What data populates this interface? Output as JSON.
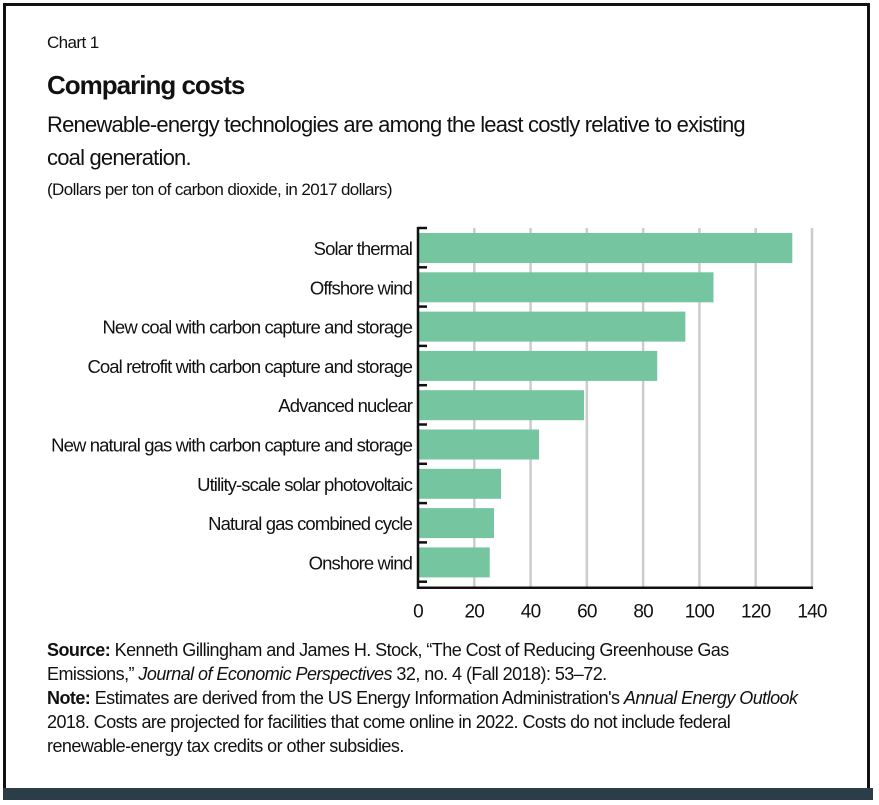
{
  "header": {
    "chart_label": "Chart 1",
    "title": "Comparing costs",
    "subtitle": "Renewable-energy technologies are among the least costly relative to existing coal generation.",
    "units": "(Dollars per ton of carbon dioxide, in 2017 dollars)"
  },
  "colors": {
    "bar": "#75c6a0",
    "grid": "#cccccc",
    "axis": "#111111",
    "footer_bar": "#2b3e47"
  },
  "chart_data": {
    "type": "bar",
    "orientation": "horizontal",
    "title": "Comparing costs",
    "xlabel": "Dollars per ton of carbon dioxide, in 2017 dollars",
    "ylabel": "",
    "categories": [
      "Solar thermal",
      "Offshore wind",
      "New coal with carbon capture and storage",
      "Coal retrofit with carbon capture and storage",
      "Advanced nuclear",
      "New natural gas with carbon capture and storage",
      "Utility-scale solar photovoltaic",
      "Natural gas combined cycle",
      "Onshore wind"
    ],
    "values": [
      133,
      105,
      95,
      85,
      59,
      43,
      29.5,
      27,
      25.5
    ],
    "xlim": [
      0,
      140
    ],
    "xticks": [
      0,
      20,
      40,
      60,
      80,
      100,
      120,
      140
    ],
    "grid": true,
    "legend": "none"
  },
  "notes": {
    "source_label": "Source:",
    "source_text_1": " Kenneth Gillingham and James H. Stock, “The Cost of Reducing Greenhouse Gas Emissions,” ",
    "source_journal": "Journal of Economic Perspectives",
    "source_text_2": " 32, no. 4 (Fall 2018): 53–72.",
    "note_label": "Note:",
    "note_text_1": " Estimates are derived from the US Energy Information Administration's ",
    "note_report": "Annual Energy Outlook",
    "note_text_2": " 2018. Costs are projected for facilities that come online in 2022. Costs do not include federal renewable-energy tax credits or other subsidies."
  }
}
